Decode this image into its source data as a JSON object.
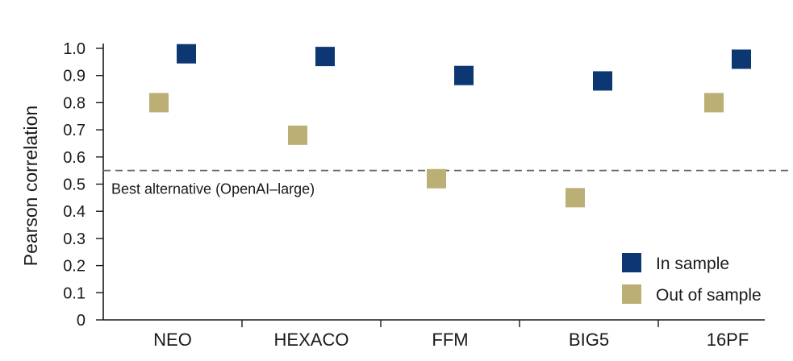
{
  "chart_data": {
    "type": "scatter",
    "title": "",
    "xlabel": "",
    "ylabel": "Pearson correlation",
    "ylim": [
      0,
      1.0
    ],
    "yticks": [
      "0",
      "0.1",
      "0.2",
      "0.3",
      "0.4",
      "0.5",
      "0.6",
      "0.7",
      "0.8",
      "0.9",
      "1.0"
    ],
    "categories": [
      "NEO",
      "HEXACO",
      "FFM",
      "BIG5",
      "16PF"
    ],
    "series": [
      {
        "name": "In sample",
        "color": "#0d3773",
        "values": [
          0.98,
          0.97,
          0.9,
          0.88,
          0.96
        ]
      },
      {
        "name": "Out of sample",
        "color": "#bcaf75",
        "values": [
          0.8,
          0.68,
          0.52,
          0.45,
          0.8
        ]
      }
    ],
    "reference_line": {
      "value": 0.55,
      "label": "Best alternative (OpenAI–large)",
      "style": "dashed",
      "color": "#666666"
    },
    "legend_position": "bottom-right",
    "grid": false
  }
}
